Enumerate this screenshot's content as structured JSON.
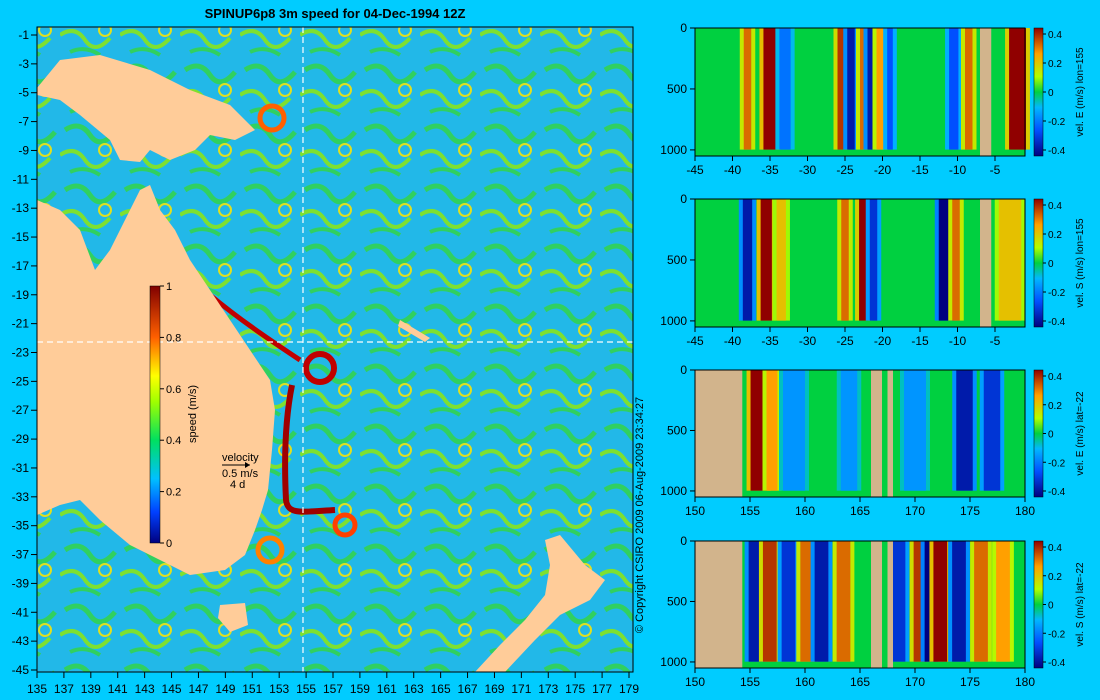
{
  "title": "SPINUP6p8 3m speed for 04-Dec-1994 12Z",
  "copyright": "© Copyright CSIRO 2009   06-Aug-2009 23:34:27",
  "colors": {
    "background": "#00ccff",
    "land": "#ffcc99",
    "bathy_land": "#d2b48c",
    "section_line": "#ffffff"
  },
  "map": {
    "lat_ticks": [
      "-1",
      "-3",
      "-5",
      "-7",
      "-9",
      "-11",
      "-13",
      "-15",
      "-17",
      "-19",
      "-21",
      "-23",
      "-25",
      "-27",
      "-29",
      "-31",
      "-33",
      "-35",
      "-37",
      "-39",
      "-41",
      "-43",
      "-45"
    ],
    "lon_ticks": [
      "135",
      "137",
      "139",
      "141",
      "143",
      "145",
      "147",
      "149",
      "151",
      "153",
      "155",
      "157",
      "159",
      "161",
      "163",
      "165",
      "167",
      "169",
      "171",
      "173",
      "175",
      "177",
      "179"
    ],
    "colorbar": {
      "label": "speed (m/s)",
      "ticks": [
        "0",
        "0.2",
        "0.4",
        "0.6",
        "0.8",
        "1"
      ],
      "range": [
        0,
        1
      ]
    },
    "velocity_legend": {
      "title": "velocity",
      "scale": "0.5 m/s",
      "days": "4 d"
    },
    "section_lon": 155,
    "section_lat": -22
  },
  "chart_data": [
    {
      "type": "heatmap",
      "title": "",
      "cbar_label": "vel. E (m/s) lon=155",
      "cbar_ticks": [
        "0.4",
        "0.2",
        "0",
        "-0.2",
        "-0.4"
      ],
      "x_ticks": [
        "-45",
        "-40",
        "-35",
        "-30",
        "-25",
        "-20",
        "-15",
        "-10",
        "-5"
      ],
      "y_ticks": [
        "0",
        "500",
        "1000"
      ],
      "xlim": [
        -45,
        -1
      ],
      "ylim": [
        0,
        1050
      ],
      "zlim": [
        -0.4,
        0.4
      ],
      "land_x": [
        [
          -7,
          -5.5
        ]
      ],
      "features": [
        {
          "x": -35,
          "v": 0.45,
          "w": 0.7
        },
        {
          "x": -38,
          "v": 0.3,
          "w": 0.4
        },
        {
          "x": -33,
          "v": -0.2,
          "w": 0.6
        },
        {
          "x": -25.5,
          "v": 0.35,
          "w": 0.4
        },
        {
          "x": -24.2,
          "v": -0.35,
          "w": 0.4
        },
        {
          "x": -22.5,
          "v": 0.3,
          "w": 0.4
        },
        {
          "x": -21.5,
          "v": -0.35,
          "w": 0.4
        },
        {
          "x": -20.3,
          "v": 0.25,
          "w": 0.4
        },
        {
          "x": -19,
          "v": -0.25,
          "w": 0.3
        },
        {
          "x": -10.5,
          "v": -0.25,
          "w": 0.5
        },
        {
          "x": -8.5,
          "v": 0.3,
          "w": 0.4
        },
        {
          "x": -2,
          "v": 0.4,
          "w": 0.9
        }
      ]
    },
    {
      "type": "heatmap",
      "title": "",
      "cbar_label": "vel. S (m/s) lon=155",
      "cbar_ticks": [
        "0.4",
        "0.2",
        "0",
        "-0.2",
        "-0.4"
      ],
      "x_ticks": [
        "-45",
        "-40",
        "-35",
        "-30",
        "-25",
        "-20",
        "-15",
        "-10",
        "-5"
      ],
      "y_ticks": [
        "0",
        "500",
        "1000"
      ],
      "xlim": [
        -45,
        -1
      ],
      "ylim": [
        0,
        1050
      ],
      "zlim": [
        -0.4,
        0.4
      ],
      "land_x": [
        [
          -7,
          -5.5
        ]
      ],
      "features": [
        {
          "x": -38,
          "v": -0.35,
          "w": 0.5
        },
        {
          "x": -35.5,
          "v": 0.45,
          "w": 0.6
        },
        {
          "x": -33.5,
          "v": 0.2,
          "w": 0.5
        },
        {
          "x": -25,
          "v": 0.3,
          "w": 0.4
        },
        {
          "x": -22.5,
          "v": 0.4,
          "w": 0.5
        },
        {
          "x": -21.2,
          "v": -0.3,
          "w": 0.4
        },
        {
          "x": -11.5,
          "v": -0.4,
          "w": 0.8
        },
        {
          "x": -10.2,
          "v": 0.3,
          "w": 0.4
        },
        {
          "x": -3,
          "v": 0.2,
          "w": 1.2
        }
      ]
    },
    {
      "type": "heatmap",
      "title": "",
      "cbar_label": "vel. E (m/s) lat=-22",
      "cbar_ticks": [
        "0.4",
        "0.2",
        "0",
        "-0.2",
        "-0.4"
      ],
      "x_ticks": [
        "150",
        "155",
        "160",
        "165",
        "170",
        "175",
        "180"
      ],
      "y_ticks": [
        "0",
        "500",
        "1000"
      ],
      "xlim": [
        150,
        180
      ],
      "ylim": [
        0,
        1050
      ],
      "zlim": [
        -0.4,
        0.4
      ],
      "land_x": [
        [
          150,
          154.3
        ],
        [
          166,
          167
        ],
        [
          167.5,
          168
        ]
      ],
      "features": [
        {
          "x": 155.8,
          "v": 0.45,
          "w": 0.6
        },
        {
          "x": 157,
          "v": 0.25,
          "w": 0.4
        },
        {
          "x": 159,
          "v": -0.15,
          "w": 0.8
        },
        {
          "x": 164,
          "v": -0.15,
          "w": 0.6
        },
        {
          "x": 170,
          "v": -0.15,
          "w": 0.8
        },
        {
          "x": 174.5,
          "v": -0.35,
          "w": 0.6
        },
        {
          "x": 177,
          "v": -0.3,
          "w": 0.6
        }
      ]
    },
    {
      "type": "heatmap",
      "title": "",
      "cbar_label": "vel. S (m/s) lat=-22",
      "cbar_ticks": [
        "0.4",
        "0.2",
        "0",
        "-0.2",
        "-0.4"
      ],
      "x_ticks": [
        "150",
        "155",
        "160",
        "165",
        "170",
        "175",
        "180"
      ],
      "y_ticks": [
        "0",
        "500",
        "1000"
      ],
      "xlim": [
        150,
        180
      ],
      "ylim": [
        0,
        1050
      ],
      "zlim": [
        -0.4,
        0.4
      ],
      "land_x": [
        [
          150,
          154.3
        ],
        [
          166,
          167
        ],
        [
          167.5,
          168
        ]
      ],
      "features": [
        {
          "x": 155.5,
          "v": -0.35,
          "w": 0.5
        },
        {
          "x": 156.8,
          "v": 0.35,
          "w": 0.5
        },
        {
          "x": 158.5,
          "v": -0.3,
          "w": 0.5
        },
        {
          "x": 160.2,
          "v": 0.3,
          "w": 0.5
        },
        {
          "x": 161.5,
          "v": -0.35,
          "w": 0.5
        },
        {
          "x": 163.5,
          "v": 0.3,
          "w": 0.5
        },
        {
          "x": 168.5,
          "v": -0.3,
          "w": 0.5
        },
        {
          "x": 170.5,
          "v": 0.35,
          "w": 0.5
        },
        {
          "x": 171.5,
          "v": -0.4,
          "w": 0.5
        },
        {
          "x": 172.3,
          "v": 0.45,
          "w": 0.5
        },
        {
          "x": 174,
          "v": -0.35,
          "w": 0.5
        },
        {
          "x": 176,
          "v": 0.3,
          "w": 0.5
        },
        {
          "x": 178,
          "v": 0.25,
          "w": 0.5
        }
      ]
    }
  ]
}
